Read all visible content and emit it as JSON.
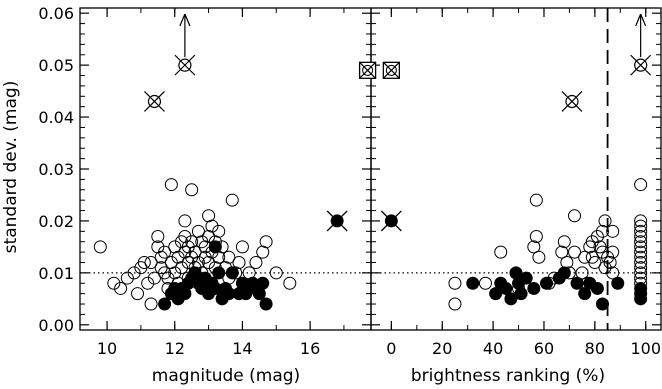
{
  "chart_data": [
    {
      "type": "scatter",
      "panel": "left",
      "xlabel": "magnitude (mag)",
      "ylabel": "standard dev. (mag)",
      "xlim": [
        9.2,
        17.8
      ],
      "ylim": [
        -0.001,
        0.061
      ],
      "xticks": [
        "10",
        "12",
        "14",
        "16"
      ],
      "xtick_values": [
        10,
        12,
        14,
        16
      ],
      "yticks": [
        "0.00",
        "0.01",
        "0.02",
        "0.03",
        "0.04",
        "0.05",
        "0.06"
      ],
      "ytick_values": [
        0.0,
        0.01,
        0.02,
        0.03,
        0.04,
        0.05,
        0.06
      ],
      "reference_line": {
        "y": 0.01,
        "style": "dotted"
      },
      "series": [
        {
          "marker": "open-circle",
          "points": [
            [
              9.8,
              0.015
            ],
            [
              10.2,
              0.008
            ],
            [
              10.4,
              0.007
            ],
            [
              10.6,
              0.009
            ],
            [
              10.8,
              0.01
            ],
            [
              10.9,
              0.006
            ],
            [
              11.0,
              0.011
            ],
            [
              11.1,
              0.012
            ],
            [
              11.2,
              0.008
            ],
            [
              11.3,
              0.012
            ],
            [
              11.3,
              0.004
            ],
            [
              11.4,
              0.009
            ],
            [
              11.5,
              0.015
            ],
            [
              11.5,
              0.017
            ],
            [
              11.6,
              0.013
            ],
            [
              11.6,
              0.011
            ],
            [
              11.7,
              0.01
            ],
            [
              11.7,
              0.014
            ],
            [
              11.8,
              0.009
            ],
            [
              11.8,
              0.007
            ],
            [
              11.9,
              0.027
            ],
            [
              11.9,
              0.012
            ],
            [
              12.0,
              0.015
            ],
            [
              12.0,
              0.01
            ],
            [
              12.1,
              0.013
            ],
            [
              12.1,
              0.008
            ],
            [
              12.2,
              0.016
            ],
            [
              12.2,
              0.011
            ],
            [
              12.3,
              0.02
            ],
            [
              12.3,
              0.017
            ],
            [
              12.3,
              0.014
            ],
            [
              12.4,
              0.015
            ],
            [
              12.4,
              0.012
            ],
            [
              12.4,
              0.009
            ],
            [
              12.5,
              0.026
            ],
            [
              12.5,
              0.016
            ],
            [
              12.5,
              0.013
            ],
            [
              12.6,
              0.011
            ],
            [
              12.6,
              0.014
            ],
            [
              12.7,
              0.018
            ],
            [
              12.7,
              0.012
            ],
            [
              12.8,
              0.01
            ],
            [
              12.8,
              0.016
            ],
            [
              12.9,
              0.013
            ],
            [
              12.9,
              0.015
            ],
            [
              13.0,
              0.021
            ],
            [
              13.0,
              0.017
            ],
            [
              13.0,
              0.012
            ],
            [
              13.1,
              0.014
            ],
            [
              13.1,
              0.019
            ],
            [
              13.2,
              0.016
            ],
            [
              13.2,
              0.011
            ],
            [
              13.3,
              0.013
            ],
            [
              13.3,
              0.018
            ],
            [
              13.4,
              0.015
            ],
            [
              13.5,
              0.011
            ],
            [
              13.6,
              0.009
            ],
            [
              13.6,
              0.013
            ],
            [
              13.7,
              0.024
            ],
            [
              13.8,
              0.01
            ],
            [
              13.9,
              0.012
            ],
            [
              14.0,
              0.015
            ],
            [
              14.2,
              0.01
            ],
            [
              14.4,
              0.012
            ],
            [
              14.6,
              0.014
            ],
            [
              14.7,
              0.016
            ],
            [
              15.0,
              0.01
            ],
            [
              15.4,
              0.008
            ]
          ]
        },
        {
          "marker": "filled-circle",
          "points": [
            [
              11.7,
              0.004
            ],
            [
              11.9,
              0.006
            ],
            [
              12.0,
              0.007
            ],
            [
              12.1,
              0.005
            ],
            [
              12.2,
              0.007
            ],
            [
              12.3,
              0.006
            ],
            [
              12.4,
              0.008
            ],
            [
              12.5,
              0.009
            ],
            [
              12.6,
              0.01
            ],
            [
              12.7,
              0.008
            ],
            [
              12.8,
              0.007
            ],
            [
              12.9,
              0.009
            ],
            [
              13.0,
              0.006
            ],
            [
              13.1,
              0.008
            ],
            [
              13.2,
              0.015
            ],
            [
              13.2,
              0.007
            ],
            [
              13.3,
              0.01
            ],
            [
              13.4,
              0.005
            ],
            [
              13.5,
              0.007
            ],
            [
              13.6,
              0.006
            ],
            [
              13.7,
              0.01
            ],
            [
              13.9,
              0.006
            ],
            [
              14.0,
              0.008
            ],
            [
              14.1,
              0.006
            ],
            [
              14.2,
              0.007
            ],
            [
              14.3,
              0.008
            ],
            [
              14.4,
              0.007
            ],
            [
              14.5,
              0.006
            ],
            [
              14.6,
              0.008
            ],
            [
              14.7,
              0.004
            ]
          ]
        },
        {
          "marker": "crossed-open-circle",
          "points": [
            [
              11.4,
              0.043
            ],
            [
              12.3,
              0.05
            ]
          ]
        },
        {
          "marker": "crossed-filled-circle",
          "points": [
            [
              16.8,
              0.02
            ]
          ]
        },
        {
          "marker": "crossed-open-square",
          "points": [
            [
              17.7,
              0.049
            ]
          ]
        }
      ],
      "upper_limit_arrows": [
        [
          12.3,
          0.05
        ]
      ]
    },
    {
      "type": "scatter",
      "panel": "right",
      "xlabel": "brightness ranking (%)",
      "xlim": [
        -8,
        106
      ],
      "ylim": [
        -0.001,
        0.061
      ],
      "xticks": [
        "0",
        "20",
        "40",
        "60",
        "80",
        "100"
      ],
      "xtick_values": [
        0,
        20,
        40,
        60,
        80,
        100
      ],
      "reference_line": {
        "y": 0.01,
        "style": "dotted"
      },
      "vertical_line": {
        "x": 85,
        "style": "dashed"
      },
      "series": [
        {
          "marker": "open-circle",
          "points": [
            [
              25,
              0.004
            ],
            [
              25,
              0.008
            ],
            [
              37,
              0.008
            ],
            [
              43,
              0.014
            ],
            [
              50,
              0.007
            ],
            [
              56,
              0.015
            ],
            [
              57,
              0.017
            ],
            [
              57,
              0.024
            ],
            [
              58,
              0.013
            ],
            [
              62,
              0.008
            ],
            [
              64,
              0.009
            ],
            [
              67,
              0.014
            ],
            [
              68,
              0.016
            ],
            [
              69,
              0.012
            ],
            [
              70,
              0.01
            ],
            [
              72,
              0.021
            ],
            [
              72,
              0.014
            ],
            [
              75,
              0.01
            ],
            [
              76,
              0.013
            ],
            [
              77,
              0.008
            ],
            [
              78,
              0.015
            ],
            [
              79,
              0.013
            ],
            [
              79,
              0.016
            ],
            [
              80,
              0.012
            ],
            [
              81,
              0.017
            ],
            [
              82,
              0.015
            ],
            [
              83,
              0.014
            ],
            [
              83,
              0.018
            ],
            [
              84,
              0.011
            ],
            [
              84,
              0.02
            ],
            [
              85,
              0.013
            ],
            [
              86,
              0.012
            ],
            [
              87,
              0.01
            ],
            [
              87,
              0.014
            ],
            [
              87,
              0.018
            ],
            [
              98,
              0.027
            ],
            [
              98,
              0.02
            ],
            [
              98,
              0.019
            ],
            [
              98,
              0.018
            ],
            [
              98,
              0.017
            ],
            [
              98,
              0.016
            ],
            [
              98,
              0.015
            ],
            [
              98,
              0.014
            ],
            [
              98,
              0.013
            ],
            [
              98,
              0.012
            ],
            [
              98,
              0.011
            ],
            [
              98,
              0.01
            ],
            [
              98,
              0.009
            ],
            [
              98,
              0.008
            ]
          ]
        },
        {
          "marker": "filled-circle",
          "points": [
            [
              32,
              0.008
            ],
            [
              41,
              0.006
            ],
            [
              43,
              0.008
            ],
            [
              45,
              0.007
            ],
            [
              47,
              0.005
            ],
            [
              49,
              0.01
            ],
            [
              50,
              0.008
            ],
            [
              51,
              0.006
            ],
            [
              53,
              0.009
            ],
            [
              56,
              0.007
            ],
            [
              61,
              0.008
            ],
            [
              66,
              0.009
            ],
            [
              68,
              0.01
            ],
            [
              73,
              0.008
            ],
            [
              76,
              0.006
            ],
            [
              78,
              0.008
            ],
            [
              81,
              0.007
            ],
            [
              83,
              0.004
            ],
            [
              89,
              0.008
            ],
            [
              98,
              0.007
            ],
            [
              98,
              0.006
            ],
            [
              98,
              0.005
            ]
          ]
        },
        {
          "marker": "crossed-open-circle",
          "points": [
            [
              71,
              0.043
            ],
            [
              98,
              0.05
            ]
          ]
        },
        {
          "marker": "crossed-filled-circle",
          "points": [
            [
              0,
              0.02
            ]
          ]
        },
        {
          "marker": "crossed-open-square",
          "points": [
            [
              0,
              0.049
            ]
          ]
        }
      ],
      "upper_limit_arrows": [
        [
          98,
          0.05
        ]
      ]
    }
  ]
}
